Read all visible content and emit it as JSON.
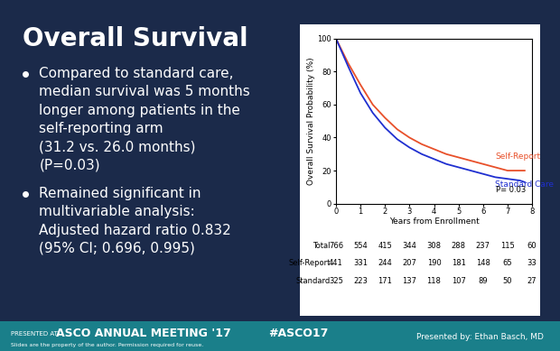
{
  "slide": {
    "title": "Overall Survival",
    "bullets": [
      [
        "Compared to standard care,",
        "median survival was 5 months",
        "longer among patients in the",
        "self-reporting arm",
        "(31.2 vs. 26.0 months)",
        "(P=0.03)"
      ],
      [
        "Remained significant in",
        "multivariable analysis:",
        "Adjusted hazard ratio 0.832",
        "(95% CI; 0.696, 0.995)"
      ]
    ],
    "footer": {
      "presented_at": "PRESENTED AT:",
      "meeting": "ASCO ANNUAL MEETING '17",
      "hashtag": "#ASCO17",
      "notice": "Slides are the property of the author. Permission required for reuse.",
      "presenter": "Presented by: Ethan Basch, MD"
    }
  },
  "chart_data": {
    "type": "line",
    "x": [
      0,
      0.5,
      1,
      1.5,
      2,
      2.5,
      3,
      3.5,
      4,
      4.5,
      5,
      5.5,
      6,
      6.5,
      7,
      7.5,
      7.7
    ],
    "xlabel": "Years from Enrollment",
    "ylabel": "Overall Survival Probability (%)",
    "xlim": [
      0,
      8
    ],
    "ylim": [
      0,
      100
    ],
    "xticks": [
      0,
      1,
      2,
      3,
      4,
      5,
      6,
      7,
      8
    ],
    "yticks": [
      0,
      20,
      40,
      60,
      80,
      100
    ],
    "grid": false,
    "annotation": "P= 0.03",
    "series": [
      {
        "name": "Self-Report",
        "color": "#e8502a",
        "line_style": "solid",
        "values": [
          100,
          85,
          72,
          60,
          52,
          45,
          40,
          36,
          33,
          30,
          28,
          26,
          24,
          22,
          20,
          20,
          20
        ]
      },
      {
        "name": "Standard Care",
        "color": "#1f2fd0",
        "line_style": "solid",
        "values": [
          100,
          83,
          67,
          55,
          46,
          39,
          34,
          30,
          27,
          24,
          22,
          20,
          18,
          16,
          15,
          14,
          13
        ]
      }
    ],
    "risk_table": {
      "x": [
        0,
        1,
        2,
        3,
        4,
        5,
        6,
        7,
        8
      ],
      "rows": [
        {
          "name": "Total",
          "values": [
            766,
            554,
            415,
            344,
            308,
            288,
            237,
            115,
            60
          ]
        },
        {
          "name": "Self-Report",
          "values": [
            441,
            331,
            244,
            207,
            190,
            181,
            148,
            65,
            33
          ]
        },
        {
          "name": "Standard",
          "values": [
            325,
            223,
            171,
            137,
            118,
            107,
            89,
            50,
            27
          ]
        }
      ]
    }
  }
}
